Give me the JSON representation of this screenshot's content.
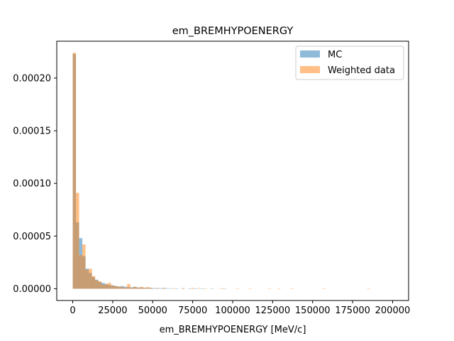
{
  "chart_data": {
    "type": "histogram",
    "title": "em_BREMHYPOENERGY",
    "xlabel": "em_BREMHYPOENERGY [MeV/c]",
    "ylabel": "",
    "xlim": [
      -10000,
      210000
    ],
    "ylim": [
      -1.12e-05,
      0.000235
    ],
    "bin_width": 2000,
    "x_ticks": [
      0,
      25000,
      50000,
      75000,
      100000,
      125000,
      150000,
      175000,
      200000
    ],
    "x_tick_labels": [
      "0",
      "25000",
      "50000",
      "75000",
      "100000",
      "125000",
      "150000",
      "175000",
      "200000"
    ],
    "y_ticks": [
      0,
      5e-05,
      0.0001,
      0.00015,
      0.0002
    ],
    "y_tick_labels": [
      "0.00000",
      "0.00005",
      "0.00010",
      "0.00015",
      "0.00020"
    ],
    "legend_position": "top-right",
    "grid": false,
    "series": [
      {
        "name": "MC",
        "color": "#1f77b4",
        "alpha": 0.5,
        "bins": [
          [
            0,
            0.000223
          ],
          [
            2000,
            6.3e-05
          ],
          [
            4000,
            4.8e-05
          ],
          [
            6000,
            3.1e-05
          ],
          [
            8000,
            1.9e-05
          ],
          [
            10000,
            1.5e-05
          ],
          [
            12000,
            1.1e-05
          ],
          [
            14000,
            8.5e-06
          ],
          [
            16000,
            6.5e-06
          ],
          [
            18000,
            5.5e-06
          ],
          [
            20000,
            4.5e-06
          ],
          [
            22000,
            3.5e-06
          ],
          [
            24000,
            3.2e-06
          ],
          [
            26000,
            2.5e-06
          ],
          [
            28000,
            2.1e-06
          ],
          [
            30000,
            2.5e-06
          ],
          [
            32000,
            1.8e-06
          ],
          [
            34000,
            1.5e-06
          ],
          [
            36000,
            1.4e-06
          ],
          [
            38000,
            1.8e-06
          ],
          [
            40000,
            1.2e-06
          ],
          [
            42000,
            1.2e-06
          ],
          [
            44000,
            1e-06
          ],
          [
            46000,
            8e-07
          ],
          [
            48000,
            8e-07
          ],
          [
            50000,
            6e-07
          ],
          [
            52000,
            5e-07
          ],
          [
            54000,
            5e-07
          ],
          [
            56000,
            6e-07
          ],
          [
            58000,
            4e-07
          ],
          [
            60000,
            3e-07
          ],
          [
            64000,
            3e-07
          ],
          [
            68000,
            4e-07
          ],
          [
            72000,
            2e-07
          ],
          [
            76000,
            2e-07
          ],
          [
            80000,
            2e-07
          ],
          [
            86000,
            2e-07
          ],
          [
            94000,
            1e-07
          ]
        ]
      },
      {
        "name": "Weighted data",
        "color": "#ff7f0e",
        "alpha": 0.5,
        "bins": [
          [
            0,
            0.000224
          ],
          [
            2000,
            9.1e-05
          ],
          [
            4000,
            3.2e-05
          ],
          [
            6000,
            4.2e-05
          ],
          [
            8000,
            1.8e-05
          ],
          [
            10000,
            1.9e-05
          ],
          [
            12000,
            1.2e-05
          ],
          [
            14000,
            8e-06
          ],
          [
            16000,
            7e-06
          ],
          [
            18000,
            4e-06
          ],
          [
            20000,
            4.5e-06
          ],
          [
            22000,
            5.5e-06
          ],
          [
            24000,
            3e-06
          ],
          [
            26000,
            2.5e-06
          ],
          [
            28000,
            2e-06
          ],
          [
            30000,
            1.5e-06
          ],
          [
            32000,
            1.2e-06
          ],
          [
            34000,
            4.5e-06
          ],
          [
            36000,
            1e-06
          ],
          [
            38000,
            1.8e-06
          ],
          [
            40000,
            1e-06
          ],
          [
            42000,
            1.8e-06
          ],
          [
            44000,
            8e-07
          ],
          [
            46000,
            1.5e-06
          ],
          [
            48000,
            8e-07
          ],
          [
            52000,
            6e-07
          ],
          [
            56000,
            8e-07
          ],
          [
            62000,
            6e-07
          ],
          [
            68000,
            5e-07
          ],
          [
            74000,
            8e-07
          ],
          [
            78000,
            5e-07
          ],
          [
            82000,
            4e-07
          ],
          [
            92000,
            5e-07
          ],
          [
            102000,
            4e-07
          ],
          [
            110000,
            4e-07
          ],
          [
            122000,
            4e-07
          ],
          [
            128000,
            4e-07
          ],
          [
            136000,
            4e-07
          ],
          [
            156000,
            4e-07
          ],
          [
            184000,
            4e-07
          ]
        ]
      }
    ]
  }
}
